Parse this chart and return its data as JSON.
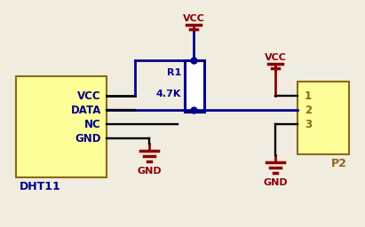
{
  "bg_color": "#f0ece0",
  "wire_color": "#00008B",
  "dark_red": "#8B0000",
  "black": "#000000",
  "box_fill": "#ffff99",
  "box_edge": "#8B6914",
  "res_fill": "#ffffff",
  "title": "DHT11",
  "p2_label": "P2",
  "r1_label": "R1",
  "r1_val": "4.7K",
  "vcc": "VCC",
  "gnd": "GND",
  "dht11_pins": [
    "VCC",
    "DATA",
    "NC",
    "GND"
  ],
  "p2_pins": [
    "1",
    "2",
    "3"
  ],
  "lw": 2.0
}
